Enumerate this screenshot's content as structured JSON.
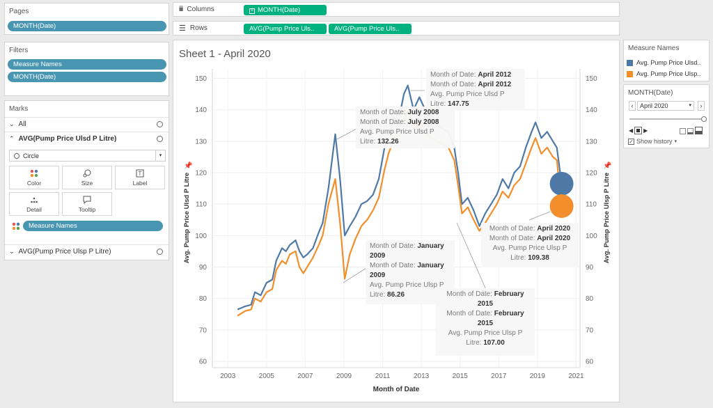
{
  "left_panel": {
    "pages": {
      "title": "Pages",
      "pill": "MONTH(Date)"
    },
    "filters": {
      "title": "Filters",
      "pills": [
        "Measure Names",
        "MONTH(Date)"
      ]
    },
    "marks": {
      "title": "Marks",
      "all": "All",
      "measure1": "AVG(Pump Price Ulsd P Litre)",
      "mark_type": "Circle",
      "buttons": {
        "color": "Color",
        "size": "Size",
        "label": "Label",
        "detail": "Detail",
        "tooltip": "Tooltip"
      },
      "color_pill": "Measure Names",
      "measure2": "AVG(Pump Price Ulsp P Litre)"
    }
  },
  "shelves": {
    "columns_label": "Columns",
    "rows_label": "Rows",
    "columns_pill": "MONTH(Date)",
    "rows_pills": [
      "AVG(Pump Price Uls..",
      "AVG(Pump Price Uls.."
    ]
  },
  "sheet": {
    "title": "Sheet 1 - April 2020"
  },
  "legend": {
    "title": "Measure Names",
    "items": [
      "Avg. Pump Price Ulsd..",
      "Avg. Pump Price Ulsp.."
    ],
    "colors": [
      "#4e79a7",
      "#f28e2b"
    ]
  },
  "page_control": {
    "title": "MONTH(Date)",
    "value": "April 2020",
    "show_history": "Show history"
  },
  "tooltips": {
    "t1": {
      "k1": "Month of Date: ",
      "v1": "April 2012",
      "k2": "Month of Date: ",
      "v2": "April 2012",
      "k3": "Avg. Pump Price Ulsd P",
      "k4": "Litre: ",
      "v4": "147.75"
    },
    "t2": {
      "k1": "Month of Date: ",
      "v1": "July 2008",
      "k2": "Month of Date: ",
      "v2": "July 2008",
      "k3": "Avg. Pump Price Ulsd P",
      "k4": "Litre: ",
      "v4": "132.26"
    },
    "t3": {
      "k1": "Month of Date: ",
      "v1": "January",
      "v1b": "2009",
      "k2": "Month of Date: ",
      "v2": "January",
      "v2b": "2009",
      "k3": "Avg. Pump Price Ulsp P",
      "k4": "Litre: ",
      "v4": "86.26"
    },
    "t4": {
      "k1": "Month of Date: ",
      "v1": "February",
      "v1b": "2015",
      "k2": "Month of Date: ",
      "v2": "February",
      "v2b": "2015",
      "k3": "Avg. Pump Price Ulsp P",
      "k4": "Litre: ",
      "v4": "107.00"
    },
    "t5": {
      "k1": "Month of Date: ",
      "v1": "April 2020",
      "k2": "Month of Date: ",
      "v2": "April 2020",
      "k3": "Avg. Pump Price Ulsp P",
      "k4": "Litre: ",
      "v4": "109.38"
    }
  },
  "chart_data": {
    "type": "line",
    "title": "Sheet 1 - April 2020",
    "xlabel": "Month of Date",
    "ylabel_left": "Avg. Pump Price Ulsd P Litre",
    "ylabel_right": "Avg. Pump Price Ulsp P Litre",
    "xlim": [
      2002.2,
      2021.2
    ],
    "ylim": [
      58,
      153
    ],
    "x_ticks": [
      "2003",
      "2005",
      "2007",
      "2009",
      "2011",
      "2013",
      "2015",
      "2017",
      "2019",
      "2021"
    ],
    "y_ticks": [
      "60",
      "70",
      "80",
      "90",
      "100",
      "110",
      "120",
      "130",
      "140",
      "150"
    ],
    "series": [
      {
        "name": "Avg. Pump Price Ulsd P Litre",
        "color": "#4e79a7",
        "points": [
          [
            2003.5,
            76.5
          ],
          [
            2003.9,
            77.5
          ],
          [
            2004.2,
            78
          ],
          [
            2004.4,
            82
          ],
          [
            2004.7,
            81
          ],
          [
            2005.0,
            85
          ],
          [
            2005.3,
            86
          ],
          [
            2005.5,
            92
          ],
          [
            2005.8,
            96
          ],
          [
            2006.0,
            95
          ],
          [
            2006.2,
            97
          ],
          [
            2006.5,
            98.5
          ],
          [
            2006.7,
            95
          ],
          [
            2006.9,
            93
          ],
          [
            2007.1,
            94
          ],
          [
            2007.4,
            96
          ],
          [
            2007.7,
            101
          ],
          [
            2007.9,
            104
          ],
          [
            2008.2,
            115
          ],
          [
            2008.55,
            132.26
          ],
          [
            2008.8,
            118
          ],
          [
            2009.04,
            100
          ],
          [
            2009.3,
            103
          ],
          [
            2009.6,
            106
          ],
          [
            2009.9,
            110
          ],
          [
            2010.2,
            111
          ],
          [
            2010.5,
            113
          ],
          [
            2010.8,
            118
          ],
          [
            2011.1,
            128
          ],
          [
            2011.3,
            133
          ],
          [
            2011.6,
            137
          ],
          [
            2011.9,
            139
          ],
          [
            2012.1,
            145
          ],
          [
            2012.3,
            147.75
          ],
          [
            2012.6,
            140
          ],
          [
            2012.9,
            144
          ],
          [
            2013.2,
            140
          ],
          [
            2013.5,
            137
          ],
          [
            2013.8,
            135
          ],
          [
            2014.1,
            134
          ],
          [
            2014.4,
            133
          ],
          [
            2014.7,
            128
          ],
          [
            2014.9,
            120
          ],
          [
            2015.1,
            110
          ],
          [
            2015.4,
            112
          ],
          [
            2015.7,
            108
          ],
          [
            2016.0,
            103
          ],
          [
            2016.3,
            107
          ],
          [
            2016.6,
            110
          ],
          [
            2016.9,
            113
          ],
          [
            2017.2,
            118
          ],
          [
            2017.5,
            115
          ],
          [
            2017.8,
            120
          ],
          [
            2018.1,
            122
          ],
          [
            2018.4,
            128
          ],
          [
            2018.7,
            133
          ],
          [
            2018.9,
            136
          ],
          [
            2019.2,
            131
          ],
          [
            2019.5,
            133
          ],
          [
            2019.8,
            130
          ],
          [
            2020.0,
            128
          ],
          [
            2020.25,
            116.5
          ]
        ]
      },
      {
        "name": "Avg. Pump Price Ulsp P Litre",
        "color": "#f28e2b",
        "points": [
          [
            2003.5,
            74.5
          ],
          [
            2003.9,
            76
          ],
          [
            2004.2,
            76.5
          ],
          [
            2004.4,
            80
          ],
          [
            2004.7,
            79
          ],
          [
            2005.0,
            82
          ],
          [
            2005.3,
            83
          ],
          [
            2005.5,
            89
          ],
          [
            2005.8,
            92
          ],
          [
            2006.0,
            91
          ],
          [
            2006.2,
            94
          ],
          [
            2006.5,
            95
          ],
          [
            2006.7,
            90
          ],
          [
            2006.9,
            88
          ],
          [
            2007.1,
            90
          ],
          [
            2007.4,
            93
          ],
          [
            2007.7,
            97
          ],
          [
            2007.9,
            100
          ],
          [
            2008.2,
            110
          ],
          [
            2008.55,
            118
          ],
          [
            2008.8,
            104
          ],
          [
            2009.04,
            86.26
          ],
          [
            2009.3,
            94
          ],
          [
            2009.6,
            99
          ],
          [
            2009.9,
            103
          ],
          [
            2010.2,
            105
          ],
          [
            2010.5,
            108
          ],
          [
            2010.8,
            112
          ],
          [
            2011.1,
            121
          ],
          [
            2011.3,
            126
          ],
          [
            2011.6,
            131
          ],
          [
            2011.9,
            132
          ],
          [
            2012.1,
            136
          ],
          [
            2012.3,
            140
          ],
          [
            2012.6,
            134
          ],
          [
            2012.9,
            137
          ],
          [
            2013.2,
            133
          ],
          [
            2013.5,
            131
          ],
          [
            2013.8,
            130
          ],
          [
            2014.1,
            129
          ],
          [
            2014.4,
            128
          ],
          [
            2014.7,
            124
          ],
          [
            2014.9,
            116
          ],
          [
            2015.1,
            107
          ],
          [
            2015.4,
            109
          ],
          [
            2015.7,
            105
          ],
          [
            2016.0,
            101.5
          ],
          [
            2016.3,
            104
          ],
          [
            2016.6,
            107
          ],
          [
            2016.9,
            110
          ],
          [
            2017.2,
            114
          ],
          [
            2017.5,
            112
          ],
          [
            2017.8,
            116
          ],
          [
            2018.1,
            118
          ],
          [
            2018.4,
            123
          ],
          [
            2018.7,
            128
          ],
          [
            2018.9,
            131
          ],
          [
            2019.2,
            126
          ],
          [
            2019.5,
            128
          ],
          [
            2019.8,
            125
          ],
          [
            2020.0,
            124
          ],
          [
            2020.25,
            109.38
          ]
        ]
      }
    ],
    "highlight_points": [
      {
        "series": "Avg. Pump Price Ulsd P Litre",
        "x": 2020.25,
        "y": 116.5
      },
      {
        "series": "Avg. Pump Price Ulsp P Litre",
        "x": 2020.25,
        "y": 109.38
      }
    ]
  }
}
